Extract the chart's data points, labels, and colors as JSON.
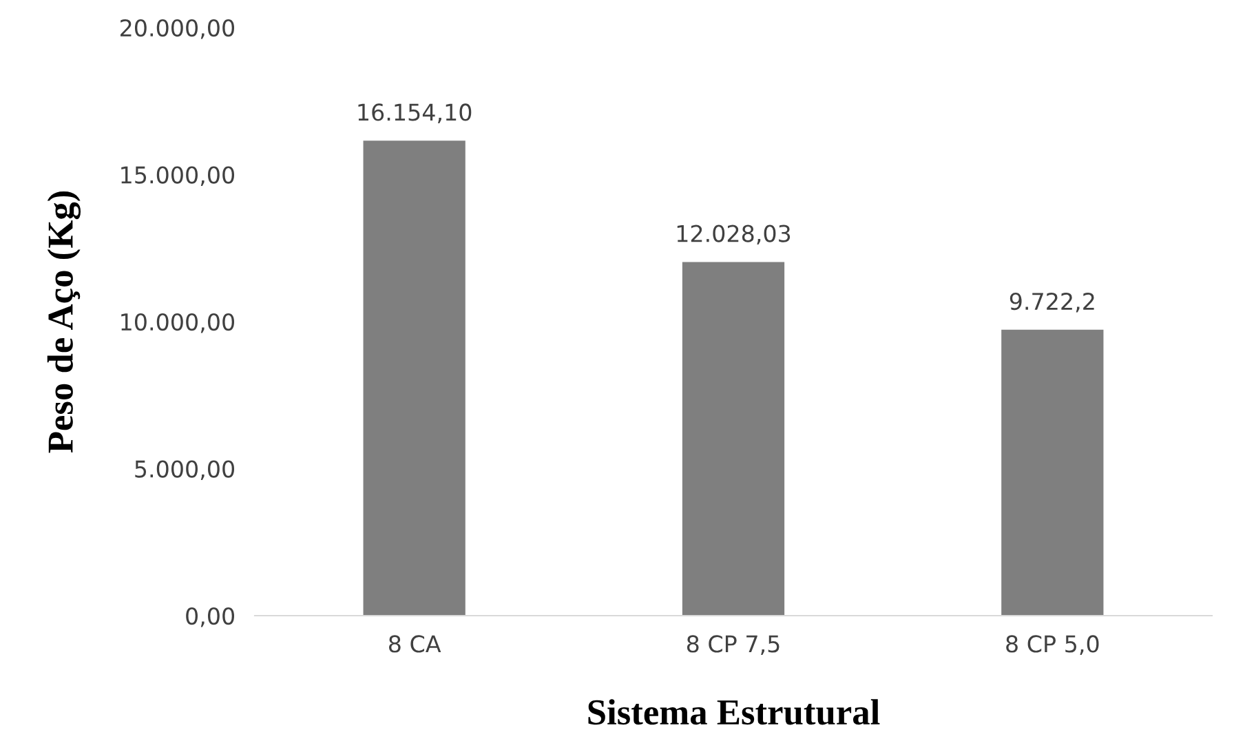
{
  "chart_data": {
    "type": "bar",
    "xlabel": "Sistema Estrutural",
    "ylabel": "Peso de Aço (Kg)",
    "categories": [
      "8 CA",
      "8 CP 7,5",
      "8 CP 5,0"
    ],
    "values": [
      16154.1,
      12028.03,
      9722.2
    ],
    "value_labels": [
      "16.154,10",
      "12.028,03",
      "9.722,2"
    ],
    "color": "#7f7f7f",
    "ylim": [
      0,
      20000
    ],
    "yticks": [
      {
        "value": 0,
        "label": "0,00"
      },
      {
        "value": 5000,
        "label": "5.000,00"
      },
      {
        "value": 10000,
        "label": "10.000,00"
      },
      {
        "value": 15000,
        "label": "15.000,00"
      },
      {
        "value": 20000,
        "label": "20.000,00"
      }
    ],
    "grid": false
  }
}
